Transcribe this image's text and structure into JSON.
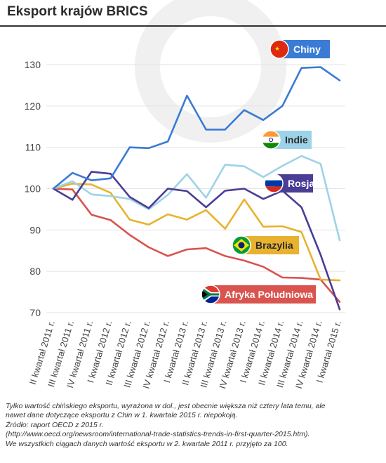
{
  "title": "Eksport krajów BRICS",
  "colors": {
    "chiny": "#3a7bd5",
    "indie": "#9dd3e8",
    "rosja": "#4a3d96",
    "brazylia": "#e8b230",
    "afryka": "#d9534f"
  },
  "chart_data": {
    "type": "line",
    "title": "Eksport krajów BRICS",
    "xlabel": "",
    "ylabel": "",
    "ylim": [
      70,
      132
    ],
    "yticks": [
      70,
      80,
      90,
      100,
      110,
      120,
      130
    ],
    "grid": true,
    "categories": [
      "II kwartał 2011 r.",
      "III kwartał 2011 r.",
      "IV kwartał 2011 r.",
      "I kwartał 2012 r.",
      "II kwartał 2012 r.",
      "III kwartał 2012 r.",
      "IV kwartał 2012 r.",
      "I kwartał 2013 r.",
      "II kwartał 2013 r.",
      "III kwartał 2013 r.",
      "IV kwartał 2013 r.",
      "I kwartał 2014 r.",
      "II kwartał 2014 r.",
      "III kwartał 2014 r.",
      "IV kwartał 2014 r.",
      "I kwartał 2015 r."
    ],
    "x_points": [
      0,
      0.5,
      1,
      1.5,
      2,
      2.5,
      3,
      3.5,
      4,
      4.5,
      5,
      5.5,
      6,
      6.5,
      7,
      7.5,
      8,
      8.5,
      9,
      9.5,
      10,
      10.5,
      11,
      11.5,
      12,
      12.5,
      13,
      13.5,
      14,
      14.5,
      15
    ],
    "series": [
      {
        "name": "Chiny",
        "key": "chiny",
        "values": [
          100,
          103.8,
          102.0,
          102.5,
          110.0,
          109.8,
          111.4,
          122.5,
          114.3,
          114.3,
          119.0,
          116.6,
          120.0,
          129.2,
          129.4,
          126.2
        ]
      },
      {
        "name": "Indie",
        "key": "indie",
        "values": [
          100,
          101.8,
          98.6,
          98.2,
          97.5,
          95.0,
          98.5,
          103.5,
          97.8,
          105.8,
          105.4,
          102.8,
          105.5,
          107.9,
          106.0,
          87.5
        ]
      },
      {
        "name": "Rosja",
        "key": "rosja",
        "values": [
          100,
          97.3,
          104.1,
          103.6,
          98.0,
          95.3,
          100.0,
          99.4,
          95.5,
          99.5,
          100.0,
          97.5,
          99.5,
          95.5,
          84.0,
          70.8
        ]
      },
      {
        "name": "Brazylia",
        "key": "brazylia",
        "values": [
          100,
          101.2,
          101.0,
          99.0,
          92.5,
          91.3,
          93.8,
          92.5,
          94.8,
          90.3,
          97.4,
          90.8,
          90.9,
          89.5,
          78.0,
          77.8
        ]
      },
      {
        "name": "Afryka Południowa",
        "key": "afryka",
        "values": [
          100,
          99.8,
          93.7,
          92.4,
          88.8,
          85.8,
          83.7,
          85.3,
          85.6,
          83.7,
          82.6,
          81.1,
          78.5,
          78.4,
          78.0,
          72.6
        ]
      }
    ]
  },
  "footnote": {
    "line1": "Tylko wartość chińskiego eksportu, wyrażona w dol., jest obecnie większa niż cztery lata temu, ale",
    "line2": "nawet dane dotyczące eksportu z Chin w 1. kwartale 2015 r. niepokoją.",
    "line3": "Źródło: raport OECD z 2015 r.",
    "line4": "(http://www.oecd.org/newsroom/international-trade-statistics-trends-in-first-quarter-2015.htm).",
    "line5": "We wszystkich ciągach danych wartość eksportu w 2. kwartale 2011 r. przyjęto za 100."
  }
}
